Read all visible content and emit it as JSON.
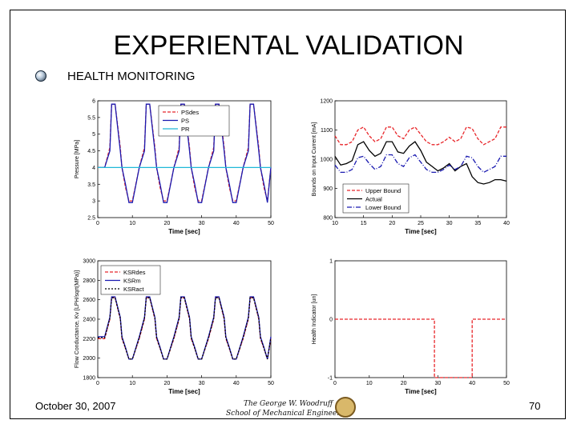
{
  "slide": {
    "title": "EXPERIENTAL VALIDATION",
    "bullet": "HEALTH MONITORING",
    "date": "October 30, 2007",
    "page": "70",
    "logo_line1": "The George W. Woodruff",
    "logo_line2": "School of Mechanical Engineering"
  },
  "colors": {
    "red": "#e8262a",
    "blue": "#1a1ab0",
    "cyan": "#20b8d8",
    "black": "#000000"
  },
  "chart_data": [
    {
      "type": "line",
      "xlabel": "Time [sec]",
      "ylabel": "Pressure [MPa]",
      "xlim": [
        0,
        50
      ],
      "ylim": [
        2.5,
        6
      ],
      "xticks": [
        0,
        10,
        20,
        30,
        40,
        50
      ],
      "yticks": [
        2.5,
        3,
        3.5,
        4,
        4.5,
        5,
        5.5,
        6
      ],
      "legend_position": "top-right",
      "series": [
        {
          "name": "PSdes",
          "color": "#e8262a",
          "dash": "4,2",
          "x": [
            0,
            2,
            3.5,
            4,
            5,
            6.5,
            7,
            8,
            9,
            10,
            12,
            13.5,
            14,
            15,
            16.5,
            17,
            18,
            19,
            20,
            22,
            23.5,
            24,
            25,
            26.5,
            27,
            28,
            29,
            30,
            32,
            33.5,
            34,
            35,
            36.5,
            37,
            38,
            39,
            40,
            42,
            43.5,
            44,
            45,
            46.5,
            47,
            48,
            49,
            50
          ],
          "y": [
            4,
            4,
            4.6,
            5.9,
            5.9,
            4.6,
            4,
            3.4,
            3,
            3,
            4,
            4.6,
            5.9,
            5.9,
            4.6,
            4,
            3.4,
            3,
            3,
            4,
            4.6,
            5.9,
            5.9,
            4.6,
            4,
            3.4,
            3,
            3,
            4,
            4.6,
            5.9,
            5.9,
            4.6,
            4,
            3.4,
            3,
            3,
            4,
            4.6,
            5.9,
            5.9,
            4.6,
            4,
            3.4,
            3,
            4
          ]
        },
        {
          "name": "PS",
          "color": "#1a1ab0",
          "dash": "",
          "x": [
            0,
            2,
            3.5,
            4,
            5,
            6.5,
            7,
            8,
            9,
            10,
            12,
            13.5,
            14,
            15,
            16.5,
            17,
            18,
            19,
            20,
            22,
            23.5,
            24,
            25,
            26.5,
            27,
            28,
            29,
            30,
            32,
            33.5,
            34,
            35,
            36.5,
            37,
            38,
            39,
            40,
            42,
            43.5,
            44,
            45,
            46.5,
            47,
            48,
            49,
            50
          ],
          "y": [
            4,
            4,
            4.5,
            5.9,
            5.9,
            4.5,
            4,
            3.5,
            2.95,
            2.95,
            4,
            4.5,
            5.9,
            5.9,
            4.5,
            4,
            3.5,
            2.95,
            2.95,
            4,
            4.5,
            5.9,
            5.9,
            4.5,
            4,
            3.5,
            2.95,
            2.95,
            4,
            4.5,
            5.9,
            5.9,
            4.5,
            4,
            3.5,
            2.95,
            2.95,
            4,
            4.5,
            5.9,
            5.9,
            4.5,
            4,
            3.5,
            2.95,
            4
          ]
        },
        {
          "name": "PR",
          "color": "#20b8d8",
          "dash": "",
          "x": [
            0,
            10,
            20,
            30,
            40,
            50
          ],
          "y": [
            4,
            4,
            4,
            4,
            4,
            4
          ]
        }
      ]
    },
    {
      "type": "line",
      "xlabel": "Time [sec]",
      "ylabel": "Bounds on Input Current [mA]",
      "xlim": [
        10,
        40
      ],
      "ylim": [
        800,
        1200
      ],
      "xticks": [
        10,
        15,
        20,
        25,
        30,
        35,
        40
      ],
      "yticks": [
        800,
        900,
        1000,
        1100,
        1200
      ],
      "legend_position": "bottom-center",
      "series": [
        {
          "name": "Upper Bound",
          "color": "#e8262a",
          "dash": "4,2",
          "x": [
            10,
            11,
            12,
            13,
            14,
            15,
            16,
            17,
            18,
            19,
            20,
            21,
            22,
            23,
            24,
            25,
            26,
            27,
            28,
            29,
            30,
            31,
            32,
            33,
            34,
            35,
            36,
            37,
            38,
            39,
            40
          ],
          "y": [
            1080,
            1050,
            1050,
            1060,
            1100,
            1110,
            1080,
            1060,
            1070,
            1110,
            1110,
            1080,
            1070,
            1100,
            1110,
            1085,
            1060,
            1050,
            1050,
            1060,
            1075,
            1060,
            1070,
            1110,
            1105,
            1070,
            1050,
            1060,
            1070,
            1110,
            1110
          ]
        },
        {
          "name": "Actual",
          "color": "#000000",
          "dash": "",
          "x": [
            10,
            11,
            12,
            13,
            14,
            15,
            16,
            17,
            18,
            19,
            20,
            21,
            22,
            23,
            24,
            25,
            26,
            27,
            28,
            29,
            30,
            31,
            32,
            33,
            34,
            35,
            36,
            37,
            38,
            39,
            40
          ],
          "y": [
            1010,
            980,
            985,
            995,
            1050,
            1060,
            1030,
            1010,
            1020,
            1060,
            1060,
            1025,
            1020,
            1045,
            1060,
            1030,
            990,
            975,
            960,
            970,
            985,
            960,
            975,
            985,
            940,
            920,
            915,
            920,
            930,
            930,
            925
          ]
        },
        {
          "name": "Lower Bound",
          "color": "#1a1ab0",
          "dash": "6,2,1,2",
          "x": [
            10,
            11,
            12,
            13,
            14,
            15,
            16,
            17,
            18,
            19,
            20,
            21,
            22,
            23,
            24,
            25,
            26,
            27,
            28,
            29,
            30,
            31,
            32,
            33,
            34,
            35,
            36,
            37,
            38,
            39,
            40
          ],
          "y": [
            980,
            955,
            955,
            965,
            1005,
            1010,
            985,
            965,
            975,
            1015,
            1015,
            985,
            975,
            1005,
            1015,
            990,
            965,
            955,
            955,
            965,
            980,
            965,
            975,
            1010,
            1005,
            975,
            955,
            965,
            975,
            1010,
            1010
          ]
        }
      ]
    },
    {
      "type": "line",
      "xlabel": "Time [sec]",
      "ylabel": "Flow Conductance, Kv [LPH/sqrt(MPa)]",
      "xlim": [
        0,
        50
      ],
      "ylim": [
        1800,
        3000
      ],
      "xticks": [
        0,
        10,
        20,
        30,
        40,
        50
      ],
      "yticks": [
        1800,
        2000,
        2200,
        2400,
        2600,
        2800,
        3000
      ],
      "legend_position": "top-left",
      "series": [
        {
          "name": "KSRdes",
          "color": "#e8262a",
          "dash": "4,2",
          "x": [
            0,
            2,
            3.5,
            4,
            5,
            6.5,
            7,
            8,
            9,
            10,
            12,
            13.5,
            14,
            15,
            16.5,
            17,
            18,
            19,
            20,
            22,
            23.5,
            24,
            25,
            26.5,
            27,
            28,
            29,
            30,
            32,
            33.5,
            34,
            35,
            36.5,
            37,
            38,
            39,
            40,
            42,
            43.5,
            44,
            45,
            46.5,
            47,
            48,
            49,
            50
          ],
          "y": [
            2200,
            2200,
            2400,
            2620,
            2620,
            2400,
            2200,
            2100,
            1990,
            1990,
            2200,
            2400,
            2620,
            2620,
            2400,
            2200,
            2100,
            1990,
            1990,
            2200,
            2400,
            2620,
            2620,
            2400,
            2200,
            2100,
            1990,
            1990,
            2200,
            2400,
            2620,
            2620,
            2400,
            2200,
            2100,
            1990,
            1990,
            2200,
            2400,
            2620,
            2620,
            2400,
            2200,
            2100,
            1990,
            2200
          ]
        },
        {
          "name": "KSRm",
          "color": "#1a1ab0",
          "dash": "",
          "x": [
            0,
            2,
            3.5,
            4,
            5,
            6.5,
            7,
            8,
            9,
            10,
            12,
            13.5,
            14,
            15,
            16.5,
            17,
            18,
            19,
            20,
            22,
            23.5,
            24,
            25,
            26.5,
            27,
            28,
            29,
            30,
            32,
            33.5,
            34,
            35,
            36.5,
            37,
            38,
            39,
            40,
            42,
            43.5,
            44,
            45,
            46.5,
            47,
            48,
            49,
            50
          ],
          "y": [
            2220,
            2220,
            2420,
            2630,
            2630,
            2420,
            2220,
            2110,
            1990,
            1990,
            2220,
            2420,
            2630,
            2630,
            2420,
            2220,
            2110,
            1990,
            1990,
            2220,
            2420,
            2630,
            2630,
            2420,
            2220,
            2110,
            1990,
            1990,
            2220,
            2420,
            2630,
            2630,
            2420,
            2220,
            2110,
            1990,
            1990,
            2220,
            2420,
            2630,
            2630,
            2420,
            2220,
            2110,
            1990,
            2220
          ]
        },
        {
          "name": "KSRact",
          "color": "#000000",
          "dash": "2,2",
          "x": [
            0,
            2,
            3.5,
            4,
            5,
            6.5,
            7,
            8,
            9,
            10,
            12,
            13.5,
            14,
            15,
            16.5,
            17,
            18,
            19,
            20,
            22,
            23.5,
            24,
            25,
            26.5,
            27,
            28,
            29,
            30,
            32,
            33.5,
            34,
            35,
            36.5,
            37,
            38,
            39,
            40,
            42,
            43.5,
            44,
            45,
            46.5,
            47,
            48,
            49,
            50
          ],
          "y": [
            2210,
            2210,
            2410,
            2620,
            2620,
            2410,
            2210,
            2100,
            1990,
            1990,
            2210,
            2410,
            2620,
            2620,
            2410,
            2210,
            2100,
            1990,
            1990,
            2210,
            2410,
            2620,
            2620,
            2410,
            2210,
            2100,
            1990,
            1990,
            2210,
            2410,
            2620,
            2620,
            2410,
            2210,
            2100,
            1990,
            1990,
            2210,
            2410,
            2620,
            2620,
            2410,
            2210,
            2100,
            1990,
            2210
          ]
        }
      ]
    },
    {
      "type": "line",
      "xlabel": "Time [sec]",
      "ylabel": "Health Indicator [un]",
      "xlim": [
        0,
        50
      ],
      "ylim": [
        -1,
        1
      ],
      "xticks": [
        0,
        10,
        20,
        30,
        40,
        50
      ],
      "yticks": [
        -1,
        0,
        1
      ],
      "legend_position": "",
      "series": [
        {
          "name": "",
          "color": "#e8262a",
          "dash": "4,2",
          "x": [
            0,
            29,
            29,
            40,
            40,
            50
          ],
          "y": [
            0,
            0,
            -1,
            -1,
            0,
            0
          ]
        }
      ]
    }
  ]
}
